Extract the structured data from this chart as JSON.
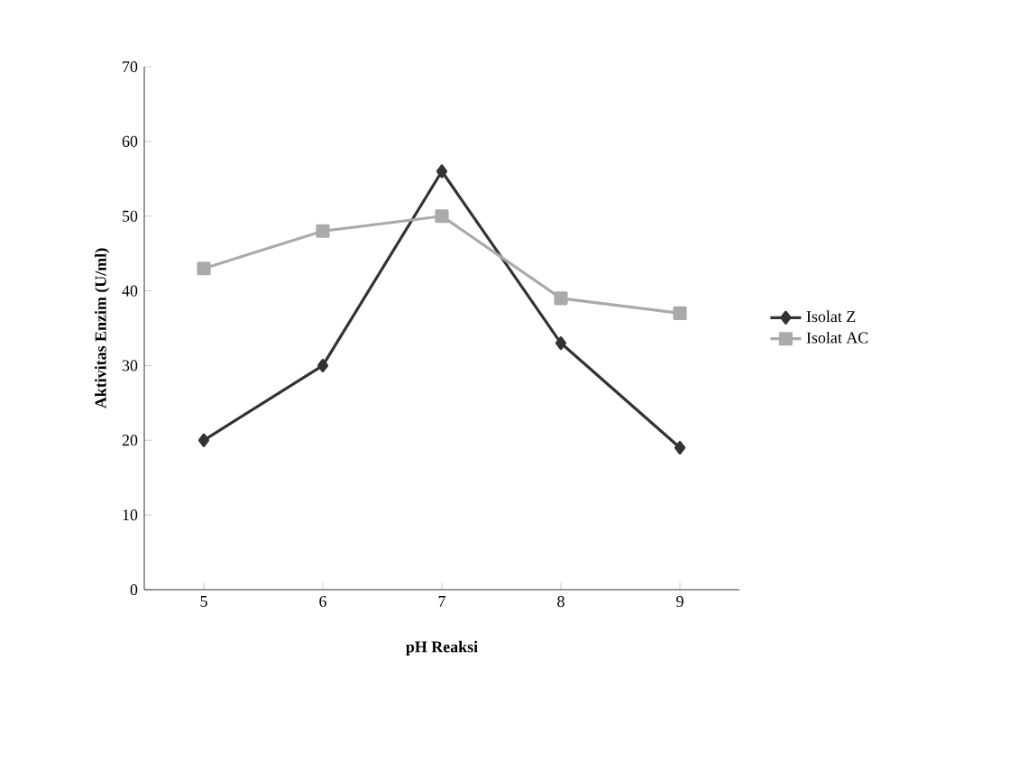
{
  "chart_data": {
    "type": "line",
    "xlabel": "pH Reaksi",
    "ylabel": "Aktivitas Enzim (U/ml)",
    "categories": [
      "5",
      "6",
      "7",
      "8",
      "9"
    ],
    "series": [
      {
        "name": "Isolat Z",
        "color": "#333333",
        "marker": "diamond",
        "values": [
          20,
          30,
          56,
          33,
          19
        ]
      },
      {
        "name": "Isolat AC",
        "color": "#aaaaaa",
        "marker": "square",
        "values": [
          43,
          48,
          50,
          39,
          37
        ]
      }
    ],
    "ylim": [
      0,
      70
    ],
    "yticks": [
      0,
      10,
      20,
      30,
      40,
      50,
      60,
      70
    ],
    "grid": false,
    "legend": "right",
    "line_style": "solid"
  }
}
